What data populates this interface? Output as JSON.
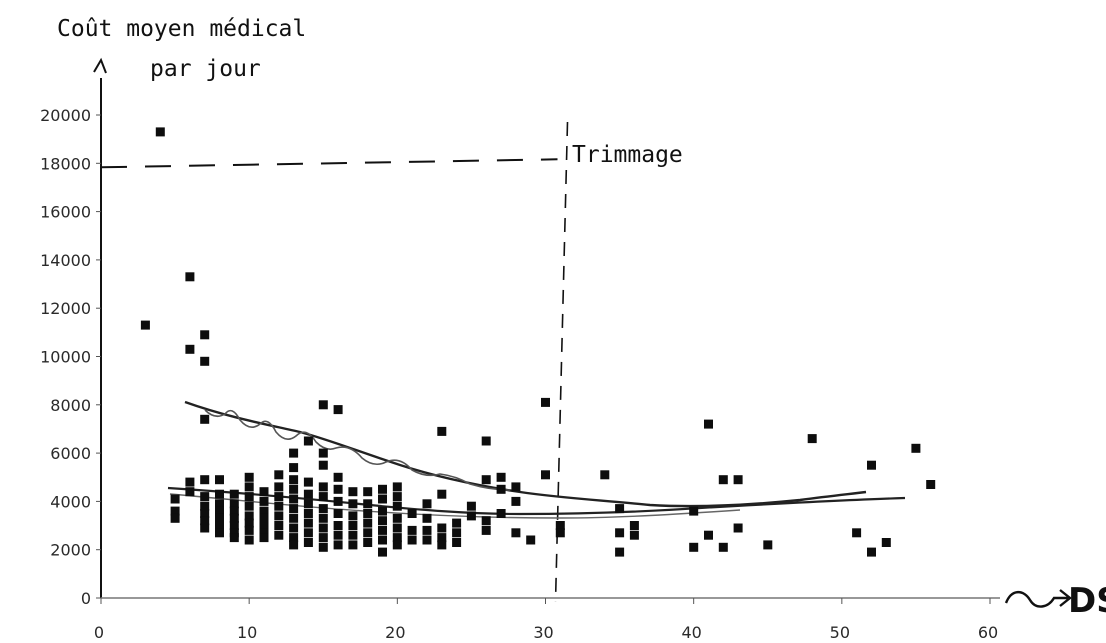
{
  "chart_data": {
    "type": "scatter",
    "ylabel_line1": "Coût moyen médical",
    "ylabel_line2": "par jour",
    "xlabel": "DS",
    "threshold_label": "Trimmage",
    "xlim": [
      0,
      60
    ],
    "ylim": [
      0,
      20000
    ],
    "x_ticks": [
      "0",
      "10",
      "20",
      "30",
      "40",
      "50",
      "60"
    ],
    "y_ticks": [
      "0",
      "2000",
      "4000",
      "6000",
      "8000",
      "10000",
      "12000",
      "14000",
      "16000",
      "18000",
      "20000"
    ],
    "horizontal_threshold": 18000,
    "vertical_threshold": 30,
    "points": [
      [
        3,
        11300
      ],
      [
        4,
        19300
      ],
      [
        5,
        4100
      ],
      [
        5,
        3600
      ],
      [
        5,
        3300
      ],
      [
        6,
        13300
      ],
      [
        6,
        10300
      ],
      [
        6,
        4800
      ],
      [
        6,
        4400
      ],
      [
        7,
        10900
      ],
      [
        7,
        9800
      ],
      [
        7,
        7400
      ],
      [
        7,
        4900
      ],
      [
        7,
        4200
      ],
      [
        7,
        3800
      ],
      [
        7,
        3500
      ],
      [
        7,
        3200
      ],
      [
        7,
        2900
      ],
      [
        8,
        4900
      ],
      [
        8,
        4300
      ],
      [
        8,
        3900
      ],
      [
        8,
        3600
      ],
      [
        8,
        3300
      ],
      [
        8,
        3000
      ],
      [
        8,
        2700
      ],
      [
        9,
        4300
      ],
      [
        9,
        3900
      ],
      [
        9,
        3600
      ],
      [
        9,
        3300
      ],
      [
        9,
        3000
      ],
      [
        9,
        2700
      ],
      [
        9,
        2500
      ],
      [
        10,
        5000
      ],
      [
        10,
        4600
      ],
      [
        10,
        4200
      ],
      [
        10,
        3800
      ],
      [
        10,
        3400
      ],
      [
        10,
        3100
      ],
      [
        10,
        2800
      ],
      [
        10,
        2400
      ],
      [
        11,
        4400
      ],
      [
        11,
        4000
      ],
      [
        11,
        3600
      ],
      [
        11,
        3300
      ],
      [
        11,
        3000
      ],
      [
        11,
        2700
      ],
      [
        11,
        2500
      ],
      [
        12,
        5100
      ],
      [
        12,
        4600
      ],
      [
        12,
        4200
      ],
      [
        12,
        3800
      ],
      [
        12,
        3400
      ],
      [
        12,
        3000
      ],
      [
        12,
        2600
      ],
      [
        13,
        6000
      ],
      [
        13,
        5400
      ],
      [
        13,
        4900
      ],
      [
        13,
        4500
      ],
      [
        13,
        4100
      ],
      [
        13,
        3700
      ],
      [
        13,
        3300
      ],
      [
        13,
        2900
      ],
      [
        13,
        2500
      ],
      [
        13,
        2200
      ],
      [
        14,
        6500
      ],
      [
        14,
        4800
      ],
      [
        14,
        4300
      ],
      [
        14,
        3900
      ],
      [
        14,
        3500
      ],
      [
        14,
        3100
      ],
      [
        14,
        2700
      ],
      [
        14,
        2300
      ],
      [
        15,
        8000
      ],
      [
        15,
        6000
      ],
      [
        15,
        5500
      ],
      [
        15,
        4600
      ],
      [
        15,
        4200
      ],
      [
        15,
        3700
      ],
      [
        15,
        3300
      ],
      [
        15,
        2900
      ],
      [
        15,
        2500
      ],
      [
        15,
        2100
      ],
      [
        16,
        7800
      ],
      [
        16,
        5000
      ],
      [
        16,
        4500
      ],
      [
        16,
        4000
      ],
      [
        16,
        3500
      ],
      [
        16,
        3000
      ],
      [
        16,
        2600
      ],
      [
        16,
        2200
      ],
      [
        17,
        4400
      ],
      [
        17,
        3900
      ],
      [
        17,
        3400
      ],
      [
        17,
        3000
      ],
      [
        17,
        2600
      ],
      [
        17,
        2200
      ],
      [
        18,
        4400
      ],
      [
        18,
        3900
      ],
      [
        18,
        3500
      ],
      [
        18,
        3100
      ],
      [
        18,
        2700
      ],
      [
        18,
        2300
      ],
      [
        19,
        4500
      ],
      [
        19,
        4100
      ],
      [
        19,
        3600
      ],
      [
        19,
        3200
      ],
      [
        19,
        2800
      ],
      [
        19,
        2400
      ],
      [
        19,
        1900
      ],
      [
        20,
        4600
      ],
      [
        20,
        4200
      ],
      [
        20,
        3800
      ],
      [
        20,
        3300
      ],
      [
        20,
        2900
      ],
      [
        20,
        2500
      ],
      [
        20,
        2200
      ],
      [
        21,
        3500
      ],
      [
        21,
        2800
      ],
      [
        21,
        2400
      ],
      [
        22,
        3900
      ],
      [
        22,
        3300
      ],
      [
        22,
        2800
      ],
      [
        22,
        2400
      ],
      [
        23,
        6900
      ],
      [
        23,
        4300
      ],
      [
        23,
        2900
      ],
      [
        23,
        2500
      ],
      [
        23,
        2200
      ],
      [
        24,
        3100
      ],
      [
        24,
        2700
      ],
      [
        24,
        2300
      ],
      [
        25,
        3800
      ],
      [
        25,
        3400
      ],
      [
        26,
        6500
      ],
      [
        26,
        4900
      ],
      [
        26,
        3200
      ],
      [
        26,
        2800
      ],
      [
        27,
        5000
      ],
      [
        27,
        4500
      ],
      [
        27,
        3500
      ],
      [
        28,
        4600
      ],
      [
        28,
        4000
      ],
      [
        28,
        2700
      ],
      [
        29,
        2400
      ],
      [
        30,
        8100
      ],
      [
        30,
        5100
      ],
      [
        31,
        3000
      ],
      [
        31,
        2700
      ],
      [
        34,
        5100
      ],
      [
        35,
        3700
      ],
      [
        35,
        2700
      ],
      [
        35,
        1900
      ],
      [
        36,
        3000
      ],
      [
        36,
        2600
      ],
      [
        40,
        2100
      ],
      [
        40,
        3600
      ],
      [
        41,
        7200
      ],
      [
        41,
        2600
      ],
      [
        42,
        4900
      ],
      [
        42,
        2100
      ],
      [
        43,
        4900
      ],
      [
        43,
        2900
      ],
      [
        45,
        2200
      ],
      [
        48,
        6600
      ],
      [
        51,
        2700
      ],
      [
        52,
        5500
      ],
      [
        52,
        1900
      ],
      [
        53,
        2300
      ],
      [
        55,
        6200
      ],
      [
        56,
        4700
      ]
    ]
  }
}
